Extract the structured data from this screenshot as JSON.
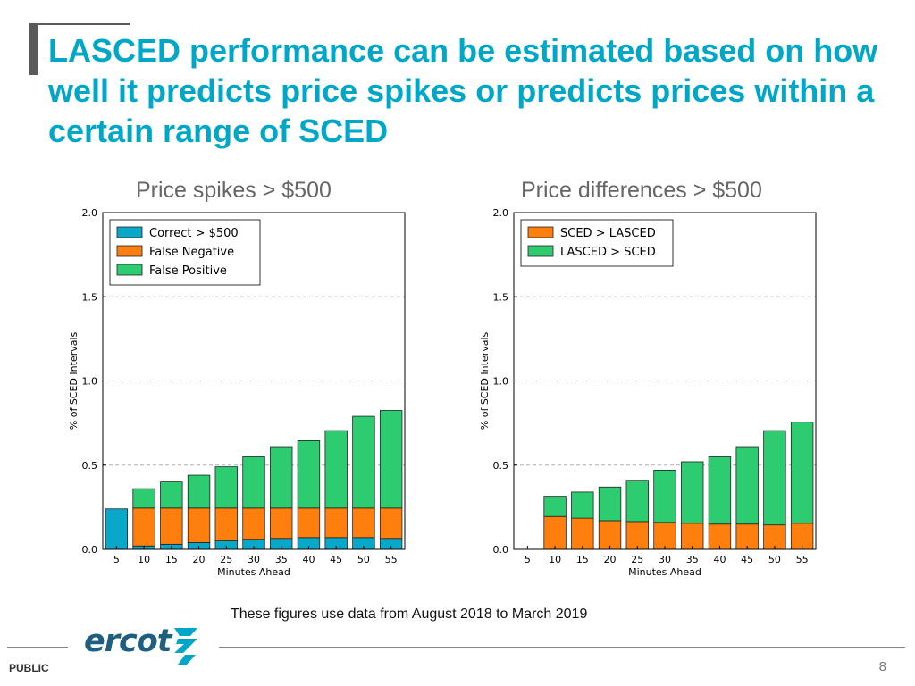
{
  "slide": {
    "title": "LASCED performance can be estimated based on how well it predicts price spikes or predicts prices within a certain range of SCED",
    "footnote": "These figures use data from August 2018 to March 2019",
    "classification": "PUBLIC",
    "page_number": "8",
    "logo_text": "ercot",
    "colors": {
      "title": "#00a7c7",
      "blue": "#0aa8c8",
      "orange": "#ff7f0e",
      "green": "#2ecc71"
    }
  },
  "chart_data": [
    {
      "type": "bar",
      "stacked": true,
      "title": "Price spikes > $500",
      "xlabel": "Minutes Ahead",
      "ylabel": "% of SCED Intervals",
      "ylim": [
        0,
        2.0
      ],
      "yticks": [
        "0.0",
        "0.5",
        "1.0",
        "1.5",
        "2.0"
      ],
      "grid": "horizontal dashed",
      "legend_position": "top-left",
      "categories": [
        "5",
        "10",
        "15",
        "20",
        "25",
        "30",
        "35",
        "40",
        "45",
        "50",
        "55"
      ],
      "series": [
        {
          "name": "Correct > $500",
          "color": "#0aa8c8",
          "values": [
            0.24,
            0.02,
            0.03,
            0.04,
            0.05,
            0.06,
            0.065,
            0.07,
            0.07,
            0.07,
            0.065
          ]
        },
        {
          "name": "False Negative",
          "color": "#ff7f0e",
          "values": [
            0.0,
            0.225,
            0.215,
            0.205,
            0.195,
            0.185,
            0.18,
            0.175,
            0.175,
            0.175,
            0.18
          ]
        },
        {
          "name": "False Positive",
          "color": "#2ecc71",
          "values": [
            0.0,
            0.115,
            0.155,
            0.195,
            0.245,
            0.305,
            0.365,
            0.4,
            0.46,
            0.545,
            0.58
          ]
        }
      ]
    },
    {
      "type": "bar",
      "stacked": true,
      "title": "Price differences > $500",
      "xlabel": "Minutes Ahead",
      "ylabel": "% of SCED Intervals",
      "ylim": [
        0,
        2.0
      ],
      "yticks": [
        "0.0",
        "0.5",
        "1.0",
        "1.5",
        "2.0"
      ],
      "grid": "horizontal dashed",
      "legend_position": "top-left",
      "categories": [
        "5",
        "10",
        "15",
        "20",
        "25",
        "30",
        "35",
        "40",
        "45",
        "50",
        "55"
      ],
      "series": [
        {
          "name": "SCED > LASCED",
          "color": "#ff7f0e",
          "values": [
            0.0,
            0.195,
            0.185,
            0.17,
            0.165,
            0.16,
            0.155,
            0.15,
            0.15,
            0.145,
            0.155
          ]
        },
        {
          "name": "LASCED > SCED",
          "color": "#2ecc71",
          "values": [
            0.0,
            0.12,
            0.155,
            0.2,
            0.245,
            0.31,
            0.365,
            0.4,
            0.46,
            0.56,
            0.6
          ]
        }
      ]
    }
  ]
}
